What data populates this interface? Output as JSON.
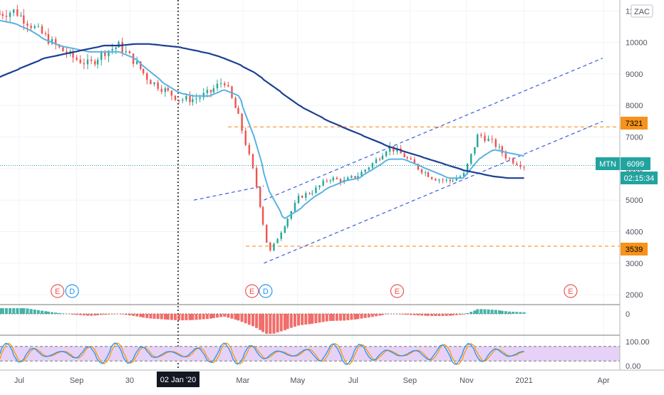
{
  "symbol": "MTN",
  "exchange": "ZAC",
  "last_price": "6099",
  "countdown": "02:15:34",
  "colors": {
    "up": "#26a69a",
    "down": "#ef5350",
    "ma_fast": "#5ab2e0",
    "ma_slow": "#1c3f94",
    "channel": "#3b5bdb",
    "level": "#f7931a",
    "price_tag": "#22a39f",
    "stoch_fill": "#e6d1f7",
    "stoch_k": "#2196f3",
    "stoch_d": "#ff9800"
  },
  "x_axis": {
    "ticks": [
      {
        "label": "Jul",
        "date": "2019-07-01"
      },
      {
        "label": "Sep",
        "date": "2019-09-02"
      },
      {
        "label": "30",
        "date": "2019-10-30"
      },
      {
        "label": "Mar",
        "date": "2020-03-02"
      },
      {
        "label": "May",
        "date": "2020-05-01"
      },
      {
        "label": "Jul",
        "date": "2020-07-01"
      },
      {
        "label": "Sep",
        "date": "2020-09-01"
      },
      {
        "label": "Nov",
        "date": "2020-11-02"
      },
      {
        "label": "2021",
        "date": "2021-01-04"
      },
      {
        "label": "Apr",
        "date": "2021-04-01"
      }
    ],
    "crosshair_label": "02 Jan '20"
  },
  "price_axis": {
    "ticks": [
      "11000",
      "10000",
      "9000",
      "8000",
      "7000",
      "6000",
      "5000",
      "4000",
      "3000",
      "2000"
    ],
    "tags": {
      "level_high": "7321",
      "level_low": "3539"
    }
  },
  "macd_axis": {
    "ticks": [
      "0"
    ]
  },
  "stoch_axis": {
    "ticks": [
      "100.00",
      "0.00"
    ]
  },
  "events": [
    "E",
    "D",
    "E",
    "D",
    "E",
    "E"
  ],
  "chart_data": {
    "type": "line",
    "title": "",
    "series": [
      {
        "values": [
          10900,
          11000,
          10600,
          10200,
          9800,
          9500,
          9300,
          9700,
          9900,
          9400,
          8800,
          8500,
          8200,
          8200,
          8400,
          8800,
          7600,
          5800,
          3300,
          4200,
          5100,
          5300,
          5700,
          5600,
          5800,
          6200,
          6700,
          6400,
          6000,
          5700,
          5600,
          5800,
          7100,
          6800,
          6300,
          6099
        ]
      },
      {
        "values": [
          10700,
          10600,
          10400,
          10100,
          9900,
          9800,
          9700,
          9700,
          9700,
          9500,
          9100,
          8700,
          8400,
          8300,
          8300,
          8500,
          8300,
          7000,
          5300,
          4400,
          4700,
          5100,
          5400,
          5600,
          5700,
          6000,
          6300,
          6300,
          6100,
          5900,
          5700,
          5700,
          6300,
          6600,
          6500,
          6400
        ]
      },
      {
        "values": [
          8900,
          9100,
          9300,
          9500,
          9600,
          9700,
          9800,
          9900,
          9900,
          9950,
          9950,
          9900,
          9850,
          9750,
          9650,
          9500,
          9300,
          9050,
          8700,
          8350,
          8000,
          7750,
          7500,
          7300,
          7100,
          6900,
          6700,
          6550,
          6400,
          6250,
          6100,
          5950,
          5850,
          5750,
          5700,
          5700
        ]
      }
    ],
    "levels": [
      7321,
      3539
    ],
    "channel": {
      "upper": [
        [
          "2020-03-25",
          5000
        ],
        [
          "2021-03-31",
          9500
        ]
      ],
      "lower": [
        [
          "2020-03-25",
          3000
        ],
        [
          "2021-03-31",
          7500
        ]
      ]
    },
    "ylim": [
      1800,
      11300
    ],
    "stochastic_bounds": [
      80,
      20
    ],
    "stoch_ylim": [
      0,
      100
    ]
  }
}
